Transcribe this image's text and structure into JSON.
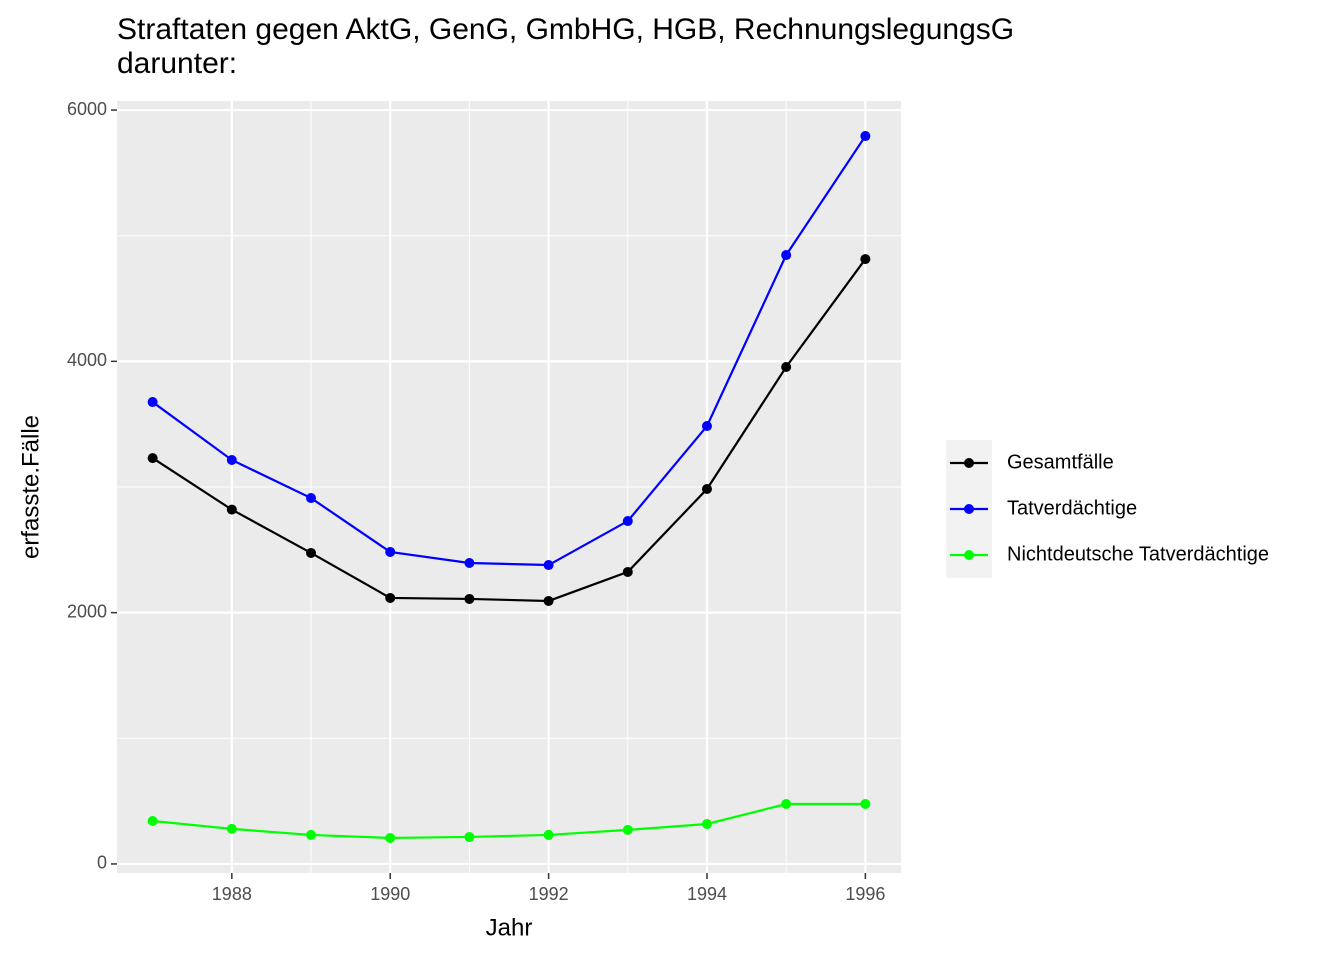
{
  "chart_data": {
    "type": "line",
    "title": [
      "Straftaten gegen AktG, GenG, GmbHG, HGB, RechnungslegungsG",
      "darunter:"
    ],
    "x_label": "Jahr",
    "y_label": "erfasste.Fälle",
    "x": [
      1987,
      1988,
      1989,
      1990,
      1991,
      1992,
      1993,
      1994,
      1995,
      1996
    ],
    "series": [
      {
        "name": "Gesamtfälle",
        "color": "#000000",
        "values": [
          3230,
          2820,
          2475,
          2117,
          2109,
          2093,
          2324,
          2984,
          3955,
          4814
        ]
      },
      {
        "name": "Tatverdächtige",
        "color": "#0000ff",
        "values": [
          3676,
          3215,
          2912,
          2483,
          2395,
          2379,
          2729,
          3485,
          4846,
          5793
        ]
      },
      {
        "name": "Nichtdeutsche Tatverdächtige",
        "color": "#00ff00",
        "values": [
          342,
          279,
          231,
          207,
          215,
          231,
          271,
          318,
          477,
          477
        ]
      }
    ],
    "xlim": [
      1986.55,
      1996.45
    ],
    "xticks": [
      1988,
      1990,
      1992,
      1994,
      1996
    ],
    "ylim": [
      -72,
      6072
    ],
    "yticks": [
      0,
      2000,
      4000,
      6000
    ],
    "grid": true,
    "minor_grid": true,
    "legend": "right"
  }
}
